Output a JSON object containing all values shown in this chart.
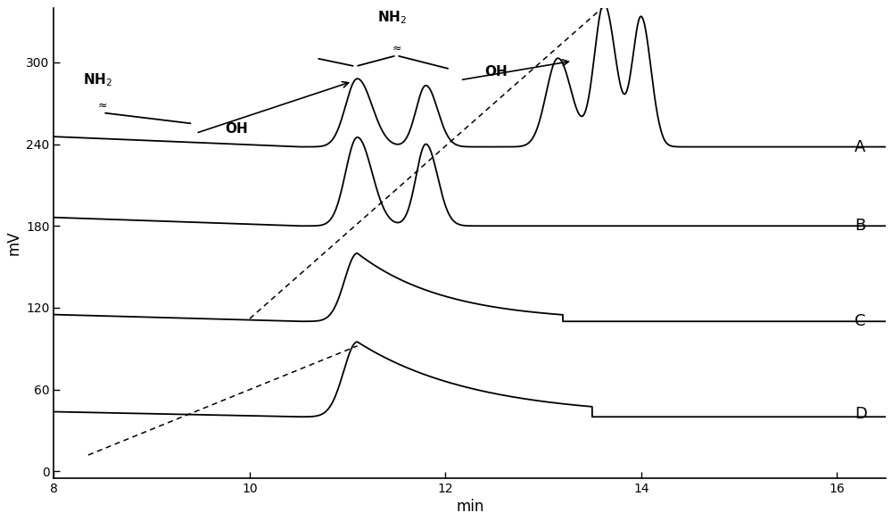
{
  "xlim": [
    8,
    16.5
  ],
  "ylim": [
    -5,
    340
  ],
  "xlabel": "min",
  "ylabel": "mV",
  "yticks": [
    0,
    60,
    120,
    180,
    240,
    300
  ],
  "xticks": [
    8,
    10,
    12,
    14,
    16
  ],
  "baseline_A": 238,
  "baseline_B": 180,
  "baseline_C": 110,
  "baseline_D": 40,
  "background_color": "#ffffff",
  "line_color": "#000000"
}
